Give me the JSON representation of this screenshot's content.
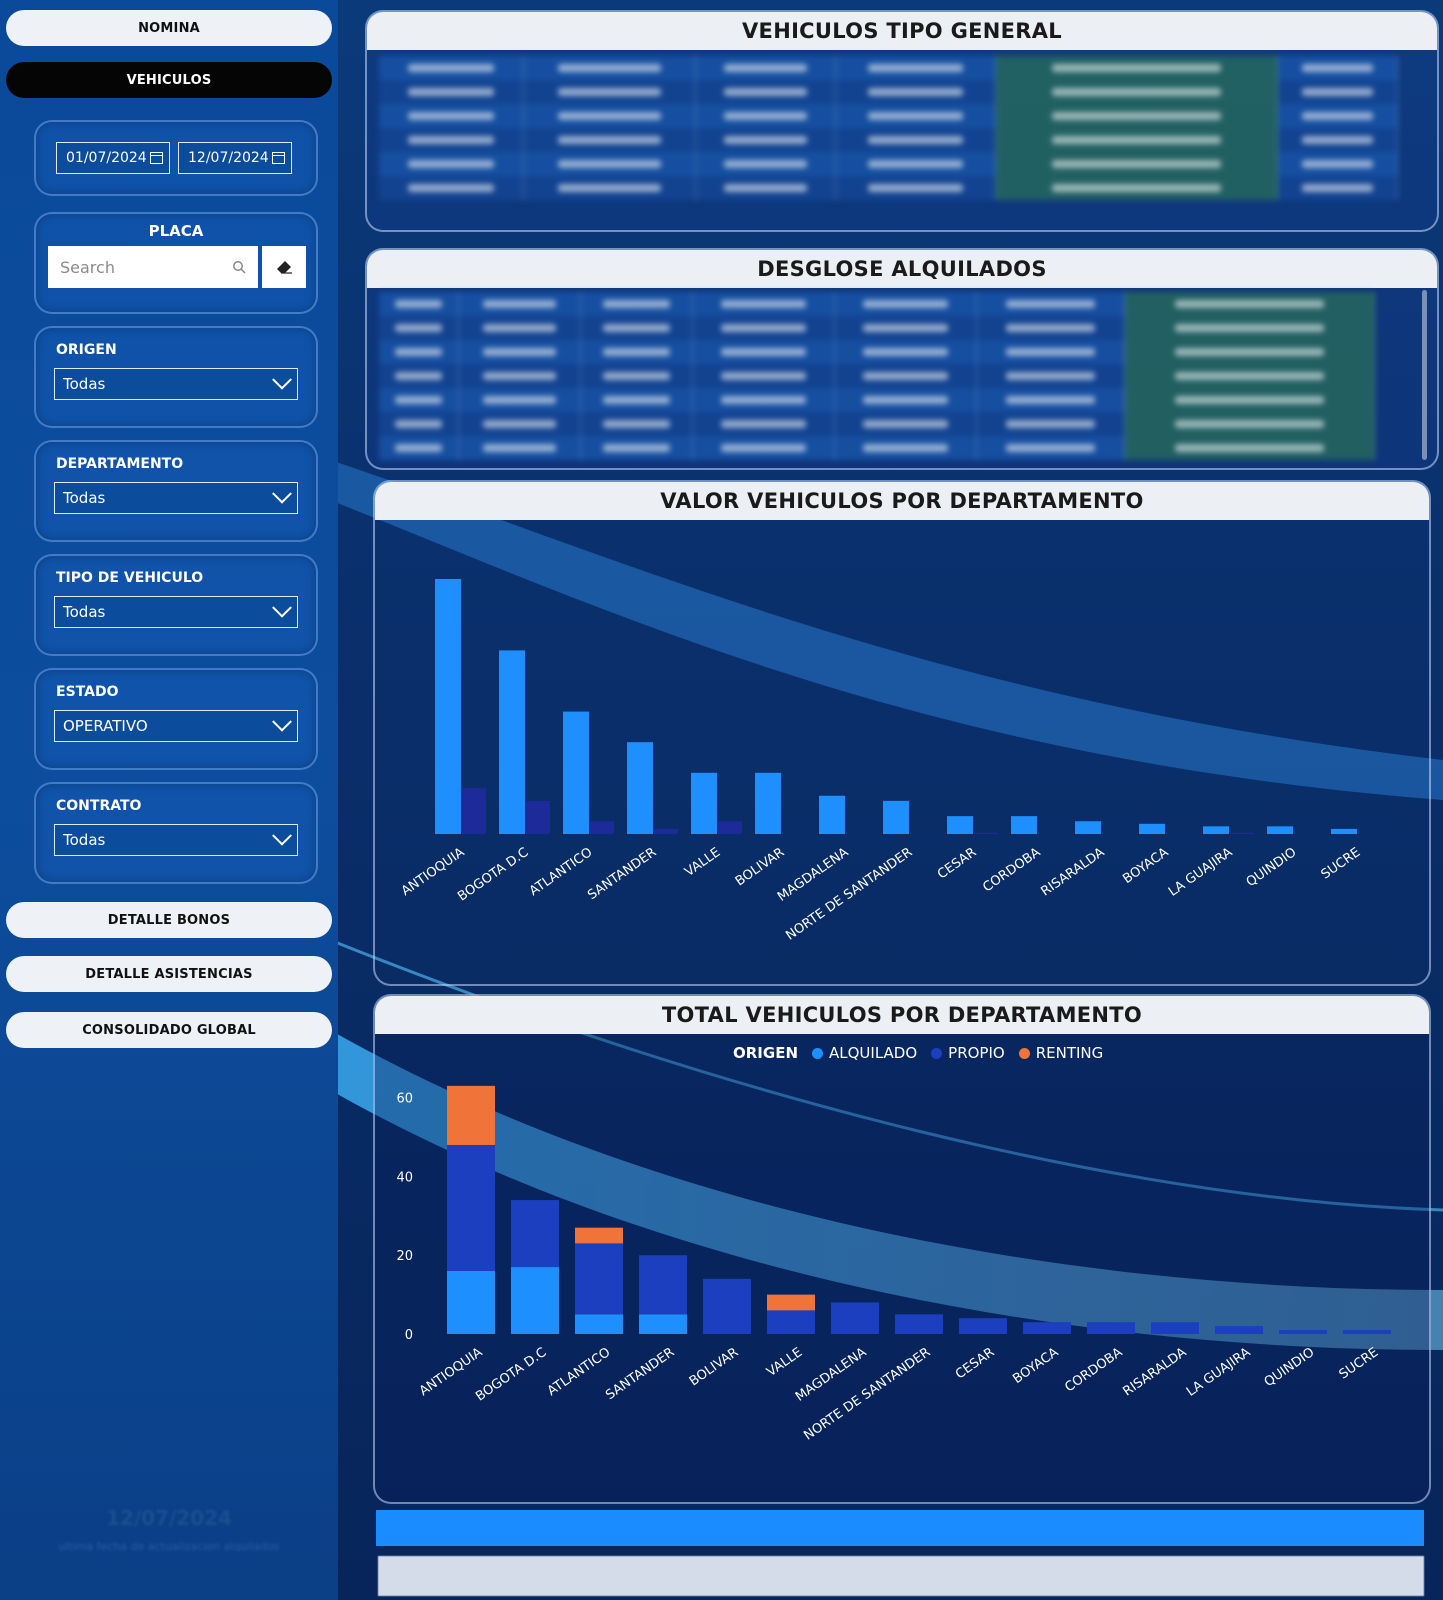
{
  "sidebar": {
    "nav_top": [
      {
        "label": "NOMINA",
        "active": false
      },
      {
        "label": "VEHICULOS",
        "active": true
      }
    ],
    "date_range": {
      "start": "01/07/2024",
      "end": "12/07/2024"
    },
    "placa": {
      "title": "PLACA",
      "search_placeholder": "Search"
    },
    "filters": [
      {
        "title": "ORIGEN",
        "value": "Todas"
      },
      {
        "title": "DEPARTAMENTO",
        "value": "Todas"
      },
      {
        "title": "TIPO DE VEHICULO",
        "value": "Todas"
      },
      {
        "title": "ESTADO",
        "value": "OPERATIVO"
      },
      {
        "title": "CONTRATO",
        "value": "Todas"
      }
    ],
    "nav_bottom": [
      {
        "label": "DETALLE BONOS"
      },
      {
        "label": "DETALLE ASISTENCIAS"
      },
      {
        "label": "CONSOLIDADO GLOBAL"
      }
    ],
    "footer_date": "12/07/2024",
    "footer_note": "ultima fecha de actualizacion alquilados"
  },
  "panels": {
    "vehiculos_general": {
      "title": "VEHICULOS TIPO GENERAL"
    },
    "desglose": {
      "title": "DESGLOSE ALQUILADOS"
    },
    "valor_chart": {
      "title": "VALOR VEHICULOS POR DEPARTAMENTO"
    },
    "total_chart": {
      "title": "TOTAL VEHICULOS POR DEPARTAMENTO"
    }
  },
  "colors": {
    "alquilado": "#1e8fff",
    "propio": "#1c3fc0",
    "renting": "#f0743a",
    "dark_bar": "#1d2a9a"
  },
  "chart_data": [
    {
      "type": "bar",
      "title": "VALOR VEHICULOS POR DEPARTAMENTO",
      "categories": [
        "ANTIOQUIA",
        "BOGOTA D.C",
        "ATLANTICO",
        "SANTANDER",
        "VALLE",
        "BOLIVAR",
        "MAGDALENA",
        "NORTE DE SANTANDER",
        "CESAR",
        "CORDOBA",
        "RISARALDA",
        "BOYACA",
        "LA GUAJIRA",
        "QUINDIO",
        "SUCRE"
      ],
      "series": [
        {
          "values": [
            100,
            72,
            48,
            36,
            24,
            24,
            15,
            13,
            7,
            7,
            5,
            4,
            3,
            3,
            2
          ]
        },
        {
          "values": [
            18,
            13,
            5,
            2,
            5,
            0,
            0,
            0,
            0.5,
            0,
            0,
            0,
            0.5,
            0,
            0
          ]
        }
      ]
    },
    {
      "type": "bar",
      "title": "TOTAL VEHICULOS POR DEPARTAMENTO",
      "legend_title": "ORIGEN",
      "legend": [
        "ALQUILADO",
        "PROPIO",
        "RENTING"
      ],
      "categories": [
        "ANTIOQUIA",
        "BOGOTA D.C",
        "ATLANTICO",
        "SANTANDER",
        "BOLIVAR",
        "VALLE",
        "MAGDALENA",
        "NORTE DE SANTANDER",
        "CESAR",
        "BOYACA",
        "CORDOBA",
        "RISARALDA",
        "LA GUAJIRA",
        "QUINDIO",
        "SUCRE"
      ],
      "y_ticks": [
        "0",
        "20",
        "40",
        "60"
      ],
      "ylim": [
        0,
        65
      ],
      "series": [
        {
          "name": "ALQUILADO",
          "values": [
            16,
            17,
            5,
            5,
            0,
            0,
            0,
            0,
            0,
            0,
            0,
            0,
            0,
            0,
            0
          ]
        },
        {
          "name": "PROPIO",
          "values": [
            32,
            17,
            18,
            15,
            14,
            6,
            8,
            5,
            4,
            3,
            3,
            3,
            2,
            1,
            1
          ]
        },
        {
          "name": "RENTING",
          "values": [
            15,
            0,
            4,
            0,
            0,
            4,
            0,
            0,
            0,
            0,
            0,
            0,
            0,
            0,
            0
          ]
        }
      ]
    }
  ]
}
